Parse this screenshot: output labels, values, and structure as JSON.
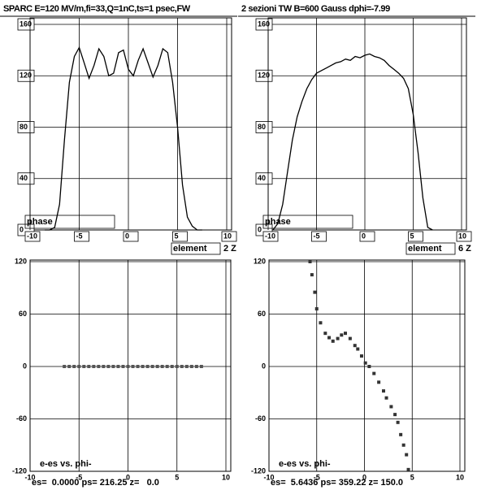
{
  "chart_data": [
    {
      "type": "line",
      "title": "SPARC E=120 MV/m,fi=33,Q=1nC,ts=1 psec,FW",
      "annotations": [
        "phase",
        "element",
        "2 Z"
      ],
      "xlim": [
        -10,
        10
      ],
      "ylim": [
        0,
        160
      ],
      "xticks": [
        -10,
        -5,
        0,
        5,
        10
      ],
      "yticks": [
        0,
        40,
        80,
        120,
        160
      ],
      "grid": true,
      "x": [
        -8.5,
        -8,
        -7.5,
        -7,
        -6.5,
        -6,
        -5.5,
        -5,
        -4.5,
        -4,
        -3.5,
        -3,
        -2.5,
        -2,
        -1.5,
        -1,
        -0.5,
        0,
        0.5,
        1,
        1.5,
        2,
        2.5,
        3,
        3.5,
        4,
        4.5,
        5,
        5.5,
        6,
        6.5,
        7,
        7.5
      ],
      "series": [
        {
          "color": "#000000",
          "values": [
            0,
            0,
            2,
            20,
            70,
            115,
            135,
            142,
            130,
            118,
            128,
            141,
            135,
            120,
            122,
            138,
            140,
            125,
            120,
            132,
            141,
            130,
            119,
            128,
            141,
            138,
            115,
            80,
            35,
            10,
            3,
            0,
            0
          ]
        }
      ]
    },
    {
      "type": "line",
      "title": "2 sezioni TW B=600 Gauss dphi=-7.99",
      "annotations": [
        "phase",
        "element",
        "6 Z"
      ],
      "xlim": [
        -10,
        10
      ],
      "ylim": [
        0,
        160
      ],
      "xticks": [
        -10,
        -5,
        0,
        5,
        10
      ],
      "yticks": [
        0,
        40,
        80,
        120,
        160
      ],
      "grid": true,
      "x": [
        -9.5,
        -9,
        -8.5,
        -8,
        -7.5,
        -7,
        -6.5,
        -6,
        -5.5,
        -5,
        -4.5,
        -4,
        -3.5,
        -3,
        -2.5,
        -2,
        -1.5,
        -1,
        -0.5,
        0,
        0.5,
        1,
        1.5,
        2,
        2.5,
        3,
        3.5,
        4,
        4.5,
        5,
        5.5,
        6,
        6.5,
        7
      ],
      "series": [
        {
          "color": "#000000",
          "values": [
            0,
            5,
            20,
            45,
            70,
            88,
            100,
            110,
            117,
            122,
            124,
            126,
            128,
            130,
            131,
            133,
            132,
            135,
            134,
            136,
            137,
            135,
            134,
            132,
            128,
            125,
            122,
            118,
            110,
            90,
            60,
            25,
            2,
            0
          ]
        }
      ]
    },
    {
      "type": "scatter",
      "annotations": [
        "e-es vs. phi-",
        "es=  0.0000 ps= 216.25 z=   0.0"
      ],
      "xlim": [
        -10,
        10
      ],
      "ylim": [
        -120,
        120
      ],
      "xticks": [
        -10,
        -5,
        0,
        5,
        10
      ],
      "yticks": [
        -120,
        -60,
        0,
        60,
        120
      ],
      "grid": true,
      "x": [
        -6.5,
        -6,
        -5.5,
        -5,
        -4.5,
        -4,
        -3.5,
        -3,
        -2.5,
        -2,
        -1.5,
        -1,
        -0.5,
        0,
        0.5,
        1,
        1.5,
        2,
        2.5,
        3,
        3.5,
        4,
        4.5,
        5,
        5.5,
        6,
        6.5,
        7,
        7.5
      ],
      "series": [
        {
          "color": "#555555",
          "values": [
            0,
            0,
            0,
            0,
            0,
            0,
            0,
            0,
            0,
            0,
            0,
            0,
            0,
            0,
            0,
            0,
            0,
            0,
            0,
            0,
            0,
            0,
            0,
            0,
            0,
            0,
            0,
            0,
            0
          ]
        }
      ]
    },
    {
      "type": "scatter",
      "annotations": [
        "e-es vs. phi-",
        "es=  5.6436 ps= 359.22 z= 150.0"
      ],
      "xlim": [
        -10,
        10
      ],
      "ylim": [
        -120,
        120
      ],
      "xticks": [
        -10,
        -5,
        0,
        5,
        10
      ],
      "yticks": [
        -120,
        -60,
        0,
        60,
        120
      ],
      "grid": true,
      "x": [
        -5.7,
        -5.5,
        -5.2,
        -5,
        -4.6,
        -4.1,
        -3.7,
        -3.3,
        -2.8,
        -2.4,
        -2,
        -1.5,
        -1,
        -0.7,
        -0.3,
        0.1,
        0.5,
        1,
        1.5,
        2,
        2.3,
        2.8,
        3.2,
        3.5,
        3.8,
        4.1,
        4.4,
        4.6
      ],
      "series": [
        {
          "color": "#333333",
          "values": [
            120,
            105,
            85,
            66,
            50,
            38,
            33,
            29,
            32,
            36,
            38,
            32,
            24,
            20,
            12,
            4,
            0,
            -8,
            -18,
            -28,
            -36,
            -46,
            -55,
            -64,
            -78,
            -90,
            -101,
            -118
          ]
        }
      ]
    }
  ]
}
